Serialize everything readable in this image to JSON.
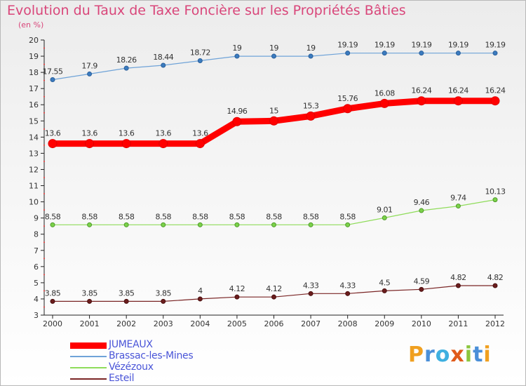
{
  "title": "Evolution du Taux de Taxe Foncière sur les Propriétés Bâties",
  "unit": "(en %)",
  "logo_text": "Proxiti",
  "chart_data": {
    "type": "line",
    "title": "Evolution du Taux de Taxe Foncière sur les Propriétés Bâties",
    "ylabel": "(en %)",
    "xlabel": "",
    "x": [
      "2000",
      "2001",
      "2002",
      "2003",
      "2004",
      "2005",
      "2006",
      "2007",
      "2008",
      "2009",
      "2010",
      "2011",
      "2012"
    ],
    "ylim": [
      3,
      20
    ],
    "yticks": [
      "3",
      "4",
      "5",
      "6",
      "7",
      "8",
      "9",
      "10",
      "11",
      "12",
      "13",
      "14",
      "15",
      "16",
      "17",
      "18",
      "19",
      "20"
    ],
    "grid": false,
    "legend_position": "bottom-left",
    "series": [
      {
        "name": "JUMEAUX",
        "color": "#ff0000",
        "values": [
          13.6,
          13.6,
          13.6,
          13.6,
          13.6,
          14.96,
          15,
          15.3,
          15.76,
          16.08,
          16.24,
          16.24,
          16.24
        ],
        "labels": [
          "13.6",
          "13.6",
          "13.6",
          "13.6",
          "13.6",
          "14.96",
          "15",
          "15.3",
          "15.76",
          "16.08",
          "16.24",
          "16.24",
          "16.24"
        ]
      },
      {
        "name": "Brassac-les-Mines",
        "color": "#6fa3d8",
        "values": [
          17.55,
          17.9,
          18.26,
          18.44,
          18.72,
          19,
          19,
          19,
          19.19,
          19.19,
          19.19,
          19.19,
          19.19
        ],
        "labels": [
          "17.55",
          "17.9",
          "18.26",
          "18.44",
          "18.72",
          "19",
          "19",
          "19",
          "19.19",
          "19.19",
          "19.19",
          "19.19",
          "19.19"
        ]
      },
      {
        "name": "Vézézoux",
        "color": "#8fdc5a",
        "values": [
          8.58,
          8.58,
          8.58,
          8.58,
          8.58,
          8.58,
          8.58,
          8.58,
          8.58,
          9.01,
          9.46,
          9.74,
          10.13
        ],
        "labels": [
          "8.58",
          "8.58",
          "8.58",
          "8.58",
          "8.58",
          "8.58",
          "8.58",
          "8.58",
          "8.58",
          "9.01",
          "9.46",
          "9.74",
          "10.13"
        ]
      },
      {
        "name": "Esteil",
        "color": "#7a2525",
        "values": [
          3.85,
          3.85,
          3.85,
          3.85,
          4,
          4.12,
          4.12,
          4.33,
          4.33,
          4.5,
          4.59,
          4.82,
          4.82
        ],
        "labels": [
          "3.85",
          "3.85",
          "3.85",
          "3.85",
          "4",
          "4.12",
          "4.12",
          "4.33",
          "4.33",
          "4.5",
          "4.59",
          "4.82",
          "4.82"
        ]
      }
    ]
  }
}
